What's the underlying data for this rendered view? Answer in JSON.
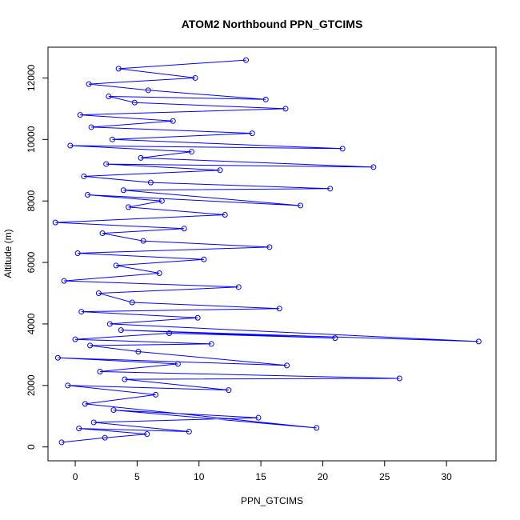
{
  "chart_data": {
    "type": "scatter",
    "title": "ATOM2 Northbound PPN_GTCIMS",
    "xlabel": "PPN_GTCIMS",
    "ylabel": "Altitude (m)",
    "xlim": [
      -2.2,
      34
    ],
    "ylim": [
      -450,
      13000
    ],
    "x_ticks": [
      0,
      5,
      10,
      15,
      20,
      25,
      30
    ],
    "y_ticks": [
      0,
      2000,
      4000,
      6000,
      8000,
      10000,
      12000
    ],
    "grid": false,
    "legend": "none",
    "series_color": "#0000ff",
    "marker": "open-circle",
    "connected": true,
    "series": [
      {
        "x": [
          -1.1,
          2.4,
          5.8,
          0.3,
          9.2,
          1.5,
          14.8,
          3.1,
          19.5,
          0.8,
          6.5,
          -0.6,
          12.4,
          4.0,
          26.2,
          2.0,
          8.3,
          -1.4,
          17.1,
          5.1,
          1.2,
          11.0,
          0.0,
          7.6,
          21.0,
          3.7,
          32.6,
          2.8,
          9.9,
          0.5,
          16.5,
          4.6,
          1.9,
          13.2,
          -0.9,
          6.8,
          3.3,
          10.4,
          0.2,
          15.7,
          5.5,
          2.2,
          8.8,
          -1.6,
          12.1,
          4.3,
          7.0,
          1.0,
          18.2,
          3.9,
          20.6,
          6.1,
          0.7,
          11.7,
          2.5,
          24.1,
          5.3,
          9.4,
          -0.4,
          21.6,
          3.0,
          14.3,
          1.3,
          7.9,
          0.4,
          17.0,
          4.8,
          2.7,
          15.4,
          5.9,
          1.1,
          9.7,
          3.5,
          13.8
        ],
        "y": [
          150,
          300,
          420,
          600,
          500,
          800,
          950,
          1200,
          620,
          1400,
          1700,
          2000,
          1850,
          2200,
          2230,
          2450,
          2700,
          2900,
          2650,
          3100,
          3300,
          3350,
          3500,
          3700,
          3540,
          3800,
          3430,
          4000,
          4200,
          4400,
          4500,
          4700,
          5000,
          5200,
          5400,
          5650,
          5900,
          6100,
          6300,
          6500,
          6700,
          6950,
          7100,
          7300,
          7550,
          7800,
          8000,
          8200,
          7850,
          8350,
          8400,
          8600,
          8800,
          9000,
          9200,
          9100,
          9400,
          9600,
          9800,
          9700,
          10000,
          10200,
          10400,
          10600,
          10800,
          11000,
          11200,
          11400,
          11300,
          11600,
          11800,
          12000,
          12300,
          12580
        ]
      }
    ]
  }
}
